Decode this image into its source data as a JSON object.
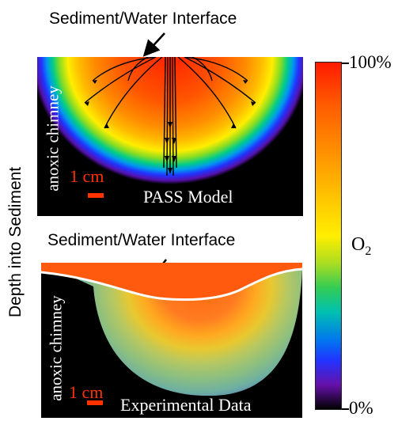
{
  "top_panel": {
    "interface_label": "Sediment/Water Interface",
    "side_label": "anoxic chimney",
    "scale_label": "1 cm",
    "model_label": "PASS Model"
  },
  "bottom_panel": {
    "interface_label": "Sediment/Water Interface",
    "side_label": "anoxic chimney",
    "scale_label": "1 cm",
    "data_label": "Experimental Data"
  },
  "y_axis_label": "Depth into Sediment",
  "colorbar": {
    "max_label": "100%",
    "min_label": "0%",
    "quantity_main": "O",
    "quantity_sub": "2",
    "stops": [
      "#ff1a00",
      "#ff8800",
      "#ffee00",
      "#44cc33",
      "#00bbcc",
      "#2244ff",
      "#6611aa",
      "#000000"
    ]
  },
  "colors": {
    "scale_bar": "#ff3300",
    "flow_line": "#000000",
    "interface_line": "#ffffff"
  }
}
